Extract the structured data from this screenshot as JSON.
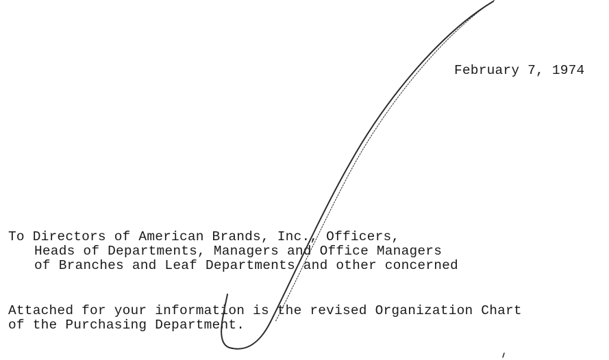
{
  "letter": {
    "date": "February 7, 1974",
    "addressee_lines": [
      "To Directors of American Brands, Inc., Officers,",
      "Heads of Departments, Managers and Office Managers",
      "of Branches and Leaf Departments and other concerned"
    ],
    "body_lines": [
      "Attached for your information is the revised Organization Chart",
      "of the Purchasing Department."
    ]
  },
  "colors": {
    "ink": "#1a1a1a",
    "signature_ink": "#2b2b2b"
  }
}
